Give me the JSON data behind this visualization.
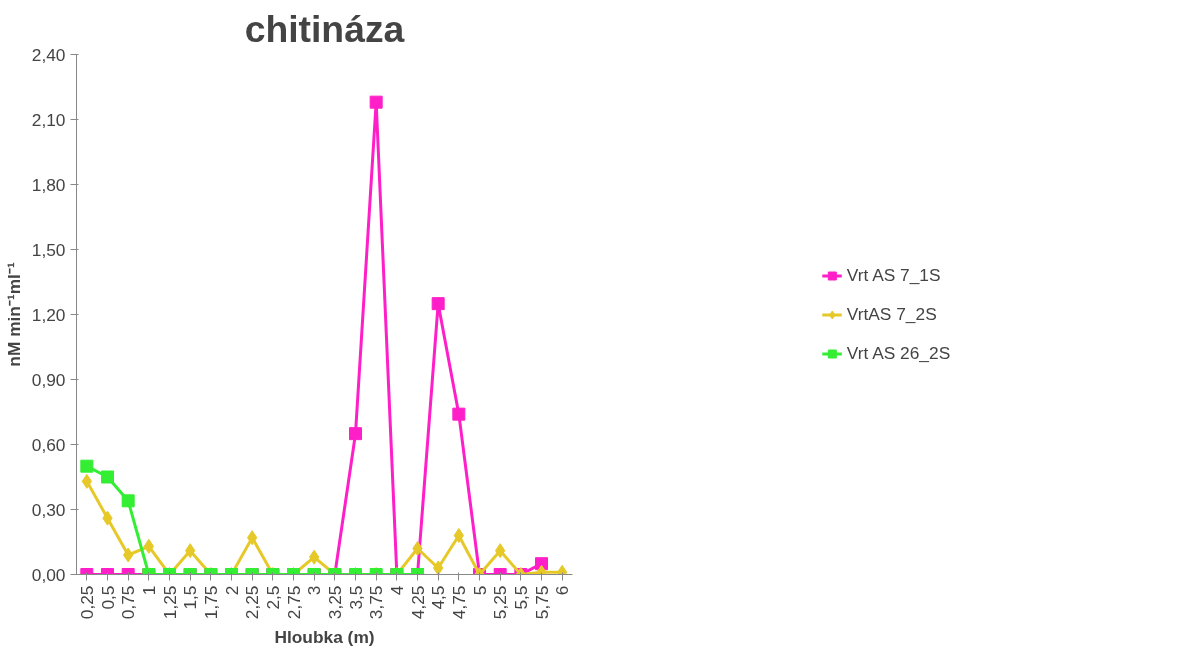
{
  "chart_data": {
    "type": "line",
    "title": "chitináza",
    "xlabel": "Hloubka (m)",
    "ylabel": "nM min⁻¹ml⁻¹",
    "categories": [
      "0,25",
      "0,5",
      "0,75",
      "1",
      "1,25",
      "1,5",
      "1,75",
      "2",
      "2,25",
      "2,5",
      "2,75",
      "3",
      "3,25",
      "3,5",
      "3,75",
      "4",
      "4,25",
      "4,5",
      "4,75",
      "5",
      "5,25",
      "5,5",
      "5,75",
      "6"
    ],
    "ylim": [
      0,
      2.4
    ],
    "yticks": [
      {
        "value": 0,
        "label": "0,00"
      },
      {
        "value": 0.3,
        "label": "0,30"
      },
      {
        "value": 0.6,
        "label": "0,60"
      },
      {
        "value": 0.9,
        "label": "0,90"
      },
      {
        "value": 1.2,
        "label": "1,20"
      },
      {
        "value": 1.5,
        "label": "1,50"
      },
      {
        "value": 1.8,
        "label": "1,80"
      },
      {
        "value": 2.1,
        "label": "2,10"
      },
      {
        "value": 2.4,
        "label": "2,40"
      }
    ],
    "grid": false,
    "legend": "right",
    "line_style": "solid",
    "series": [
      {
        "name": "Vrt AS 7_1S",
        "color": "#ff1fc8",
        "marker": "square",
        "values": [
          0,
          0,
          0,
          0,
          0,
          0,
          0,
          0,
          0,
          0,
          0,
          0,
          0,
          0.65,
          2.18,
          0,
          0,
          1.25,
          0.74,
          0,
          0,
          0,
          0.05,
          null
        ]
      },
      {
        "name": "VrtAS 7_2S",
        "color": "#e6c929",
        "marker": "diamond",
        "values": [
          0.43,
          0.26,
          0.09,
          0.13,
          0,
          0.11,
          0,
          0,
          0.17,
          0,
          0,
          0.08,
          0,
          0,
          0,
          0,
          0.12,
          0.03,
          0.18,
          0,
          0.11,
          0,
          0.01,
          0.01
        ]
      },
      {
        "name": "Vrt AS 26_2S",
        "color": "#33ee33",
        "marker": "square",
        "values": [
          0.5,
          0.45,
          0.34,
          0,
          0,
          0,
          0,
          0,
          0,
          0,
          0,
          0,
          0,
          0,
          0,
          0,
          0,
          null,
          null,
          null,
          null,
          null,
          null,
          null
        ]
      }
    ]
  }
}
